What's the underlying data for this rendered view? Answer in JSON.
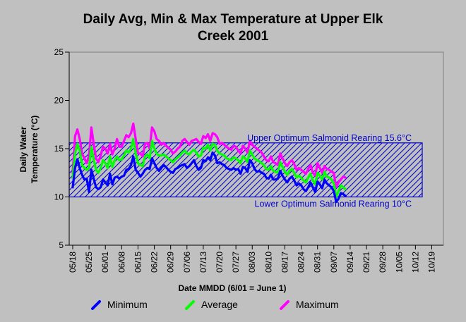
{
  "chart_data": {
    "type": "line",
    "title_line1": "Daily Avg, Min & Max Temperature at Upper Elk",
    "title_line2": "Creek 2001",
    "ylabel_line1": "Daily Water",
    "ylabel_line2": "Temperature (°C)",
    "xlabel": "Date MMDD (6/01 = June 1)",
    "ylim": [
      5,
      25
    ],
    "yticks": [
      5,
      10,
      15,
      20,
      25
    ],
    "ytick_labels": [
      "5",
      "10",
      "15",
      "20",
      "25"
    ],
    "x_start_date": "2001-05-18",
    "x_end_date": "2001-10-24",
    "xtick_labels": [
      "05/18",
      "05/25",
      "06/01",
      "06/08",
      "06/15",
      "06/22",
      "06/29",
      "07/06",
      "07/13",
      "07/20",
      "07/27",
      "08/03",
      "08/10",
      "08/17",
      "08/24",
      "08/31",
      "09/07",
      "09/14",
      "09/21",
      "09/28",
      "10/05",
      "10/12",
      "10/19"
    ],
    "grid": false,
    "reference_band": {
      "lower": 10,
      "upper": 15.6,
      "fill": "hatched",
      "color": "#0000cc"
    },
    "annotations": {
      "upper": "Upper Optimum Salmonid Rearing 15.6°C",
      "lower": "Lower Optimum Salmonid Rearing 10°C"
    },
    "colors": {
      "Minimum": "#0000ff",
      "Average": "#00ff00",
      "Maximum": "#ff00ff",
      "band": "#0000cc",
      "background": "#c0c0c0"
    },
    "legend_position": "bottom",
    "series": [
      {
        "name": "Maximum",
        "values": [
          12.5,
          16.3,
          17.0,
          16.0,
          14.5,
          14.0,
          13.5,
          14.3,
          17.2,
          15.5,
          14.0,
          13.6,
          14.3,
          15.2,
          15.0,
          14.5,
          15.5,
          14.4,
          15.0,
          16.0,
          15.2,
          15.2,
          15.8,
          16.4,
          16.2,
          16.6,
          17.6,
          16.0,
          14.5,
          14.5,
          14.2,
          15.5,
          15.6,
          15.0,
          17.2,
          16.8,
          16.0,
          15.8,
          15.4,
          15.6,
          15.3,
          15.1,
          14.9,
          14.5,
          14.7,
          15.0,
          15.2,
          15.8,
          16.0,
          15.7,
          15.4,
          15.8,
          15.9,
          16.0,
          15.7,
          15.5,
          16.3,
          16.1,
          16.5,
          15.8,
          16.6,
          16.5,
          16.2,
          15.5,
          15.6,
          15.4,
          15.2,
          15.0,
          14.9,
          15.3,
          15.2,
          14.8,
          14.5,
          15.3,
          15.0,
          14.6,
          15.8,
          15.4,
          15.2,
          15.0,
          14.8,
          14.6,
          14.2,
          13.8,
          13.7,
          14.2,
          13.6,
          13.5,
          13.3,
          14.5,
          14.0,
          13.5,
          13.2,
          13.6,
          13.8,
          13.4,
          12.8,
          13.0,
          12.8,
          12.6,
          12.4,
          12.9,
          13.3,
          12.5,
          12.2,
          13.5,
          13.0,
          12.5,
          13.2,
          12.9,
          12.8,
          12.6,
          12.5,
          11.0,
          11.5,
          11.8,
          12.1,
          12.0
        ]
      },
      {
        "name": "Average",
        "values": [
          12.0,
          14.5,
          15.5,
          14.8,
          13.3,
          13.0,
          12.8,
          13.0,
          15.2,
          13.9,
          12.8,
          12.5,
          13.0,
          13.8,
          13.5,
          13.0,
          14.2,
          13.1,
          13.8,
          14.2,
          13.8,
          13.9,
          14.3,
          14.8,
          14.6,
          15.0,
          16.0,
          14.5,
          13.5,
          13.3,
          13.2,
          14.2,
          14.4,
          14.0,
          15.8,
          15.0,
          14.5,
          14.3,
          14.3,
          14.4,
          14.2,
          14.0,
          13.8,
          13.6,
          13.9,
          14.1,
          14.3,
          14.6,
          14.8,
          14.5,
          14.4,
          14.7,
          14.9,
          14.6,
          14.2,
          14.3,
          15.1,
          15.0,
          15.4,
          14.8,
          15.5,
          15.4,
          14.8,
          14.5,
          14.4,
          14.3,
          14.0,
          13.9,
          13.8,
          14.1,
          14.0,
          13.8,
          13.5,
          14.2,
          14.0,
          13.6,
          14.8,
          14.4,
          14.0,
          13.8,
          13.7,
          13.5,
          13.3,
          12.9,
          12.8,
          13.2,
          12.7,
          12.6,
          12.5,
          13.6,
          13.1,
          12.6,
          12.3,
          12.7,
          12.9,
          12.5,
          12.0,
          12.2,
          12.0,
          11.7,
          11.5,
          12.0,
          12.4,
          11.7,
          11.3,
          12.5,
          12.2,
          11.8,
          12.6,
          12.1,
          12.0,
          11.8,
          11.4,
          10.0,
          10.6,
          11.2,
          11.0,
          10.8
        ]
      },
      {
        "name": "Minimum",
        "values": [
          11.0,
          13.0,
          13.9,
          13.0,
          12.3,
          11.8,
          11.9,
          10.5,
          12.8,
          11.9,
          11.0,
          10.8,
          11.0,
          11.8,
          11.5,
          11.2,
          12.4,
          11.3,
          12.0,
          12.1,
          11.9,
          12.1,
          12.2,
          12.8,
          12.9,
          13.3,
          14.2,
          12.8,
          12.5,
          12.1,
          12.4,
          12.8,
          13.0,
          12.9,
          14.0,
          13.5,
          13.0,
          12.7,
          13.0,
          13.3,
          13.1,
          12.8,
          12.6,
          12.5,
          12.9,
          13.0,
          13.2,
          13.3,
          13.4,
          13.0,
          13.2,
          13.5,
          13.8,
          13.2,
          12.8,
          13.0,
          13.8,
          13.7,
          14.1,
          13.8,
          14.6,
          14.3,
          13.5,
          13.6,
          13.4,
          13.3,
          13.0,
          12.9,
          12.8,
          13.0,
          12.8,
          12.9,
          12.4,
          13.1,
          13.0,
          12.6,
          13.8,
          13.5,
          12.9,
          12.6,
          12.7,
          12.5,
          12.4,
          12.0,
          11.9,
          12.3,
          11.8,
          11.8,
          11.9,
          12.7,
          12.2,
          11.8,
          11.5,
          11.9,
          12.1,
          11.7,
          11.2,
          11.4,
          11.2,
          10.8,
          10.6,
          11.0,
          11.5,
          11.0,
          10.5,
          11.6,
          11.3,
          10.9,
          11.8,
          11.4,
          11.2,
          11.0,
          10.6,
          9.5,
          9.8,
          10.4,
          10.3,
          10.1
        ]
      }
    ]
  },
  "legend": [
    {
      "label": "Minimum",
      "color": "#0000ff"
    },
    {
      "label": "Average",
      "color": "#00ff00"
    },
    {
      "label": "Maximum",
      "color": "#ff00ff"
    }
  ]
}
